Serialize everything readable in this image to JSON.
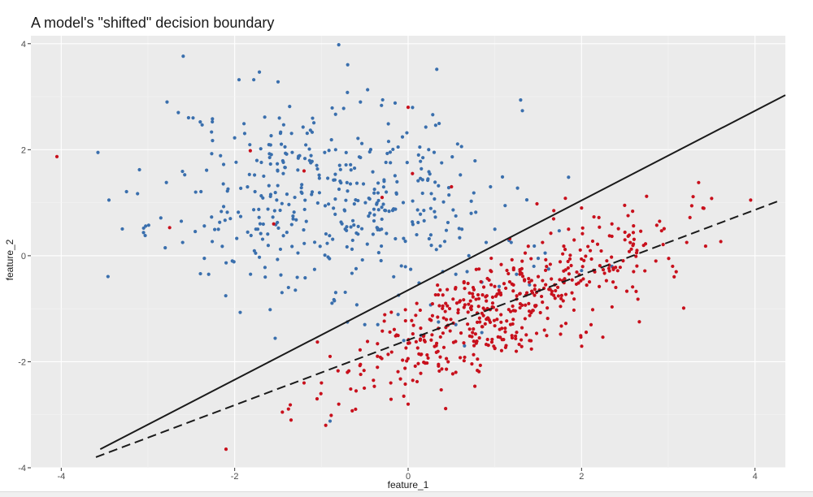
{
  "chart_data": {
    "type": "scatter",
    "title": "A model's \"shifted\" decision boundary",
    "xlabel": "feature_1",
    "ylabel": "feature_2",
    "xlim": [
      -4.35,
      4.35
    ],
    "ylim": [
      -4.0,
      4.15
    ],
    "x_ticks": [
      -4,
      -2,
      0,
      2,
      4
    ],
    "y_ticks": [
      -4,
      -2,
      0,
      2,
      4
    ],
    "grid": true,
    "legend": "none",
    "colors": {
      "panel": "#ebebeb",
      "grid_major": "#ffffff",
      "grid_minor": "#f4f4f4",
      "tick": "#333333",
      "blue_class": "#3a6fad",
      "red_class": "#c8101c",
      "boundary": "#1a1a1a"
    },
    "lines": [
      {
        "style": "solid",
        "x": [
          -3.55,
          4.35
        ],
        "y": [
          -3.65,
          3.03
        ]
      },
      {
        "style": "dashed",
        "x": [
          -3.6,
          4.3
        ],
        "y": [
          -3.8,
          1.05
        ]
      }
    ],
    "series": [
      {
        "color": "#3a6fad",
        "cluster": {
          "center": [
            -0.9,
            1.15
          ],
          "sd": [
            0.95,
            0.9
          ],
          "count": 400,
          "seed": 11
        },
        "points": [
          [
            -0.8,
            3.98
          ],
          [
            -1.95,
            3.32
          ],
          [
            -1.78,
            3.32
          ],
          [
            -1.5,
            3.28
          ],
          [
            -2.78,
            2.9
          ],
          [
            -2.65,
            2.7
          ],
          [
            -0.7,
            3.08
          ],
          [
            -0.15,
            2.88
          ],
          [
            -0.55,
            2.9
          ],
          [
            -3.45,
            1.05
          ],
          [
            -3.12,
            1.17
          ],
          [
            -3.05,
            0.52
          ],
          [
            -2.48,
            2.6
          ],
          [
            -0.85,
            -0.85
          ],
          [
            -1.38,
            -0.6
          ],
          [
            -1.3,
            -0.65
          ],
          [
            0.95,
            1.3
          ],
          [
            1.0,
            0.5
          ],
          [
            1.45,
            -0.2
          ],
          [
            1.58,
            0.05
          ],
          [
            1.85,
            1.48
          ],
          [
            0.62,
            0.5
          ],
          [
            0.55,
            0.75
          ],
          [
            0.35,
            1.32
          ],
          [
            0.78,
            0.82
          ],
          [
            0.9,
            0.25
          ],
          [
            0.7,
            0.0
          ],
          [
            0.3,
            1.95
          ],
          [
            0.12,
            1.9
          ],
          [
            0.4,
            -0.3
          ],
          [
            0.55,
            -0.35
          ],
          [
            0.68,
            -0.3
          ],
          [
            0.85,
            -0.5
          ],
          [
            1.05,
            -0.58
          ],
          [
            1.25,
            -0.35
          ],
          [
            1.4,
            -0.55
          ],
          [
            1.5,
            -0.05
          ],
          [
            1.62,
            -0.25
          ],
          [
            2.0,
            -0.28
          ],
          [
            2.35,
            -0.2
          ],
          [
            -0.35,
            -1.3
          ],
          [
            -0.5,
            -1.3
          ],
          [
            -0.7,
            -1.25
          ],
          [
            -0.05,
            -1.6
          ],
          [
            0.15,
            -1.5
          ],
          [
            0.35,
            -1.25
          ],
          [
            0.55,
            -1.3
          ],
          [
            0.65,
            -1.7
          ],
          [
            0.85,
            -1.45
          ],
          [
            -0.9,
            -3.12
          ],
          [
            -2.05,
            0.7
          ],
          [
            -2.3,
            -0.35
          ],
          [
            -2.45,
            1.2
          ],
          [
            -2.6,
            0.25
          ],
          [
            -2.35,
            -0.05
          ]
        ]
      },
      {
        "color": "#c8101c",
        "cluster": {
          "center": [
            1.05,
            -1.0
          ],
          "sd": [
            0.9,
            0.5
          ],
          "count": 470,
          "seed": 29,
          "slope": 0.62
        },
        "points": [
          [
            -4.05,
            1.87
          ],
          [
            0.0,
            2.8
          ],
          [
            -2.75,
            0.53
          ],
          [
            -1.82,
            1.98
          ],
          [
            -1.55,
            0.6
          ],
          [
            -1.2,
            1.6
          ],
          [
            -0.3,
            1.1
          ],
          [
            0.5,
            1.3
          ],
          [
            0.05,
            1.55
          ],
          [
            -2.1,
            -3.65
          ],
          [
            -1.35,
            -3.1
          ],
          [
            -1.45,
            -2.95
          ],
          [
            -0.95,
            -3.2
          ],
          [
            -1.05,
            -2.7
          ],
          [
            -1.2,
            -2.4
          ],
          [
            -0.8,
            -2.8
          ],
          [
            -0.6,
            -2.55
          ],
          [
            -0.4,
            -2.35
          ],
          [
            -0.2,
            -2.4
          ],
          [
            0.0,
            -2.8
          ],
          [
            -0.05,
            -2.65
          ],
          [
            -0.7,
            -2.2
          ],
          [
            -0.55,
            -2.05
          ],
          [
            -0.9,
            -1.9
          ],
          [
            3.05,
            -0.2
          ],
          [
            3.35,
            1.38
          ],
          [
            3.25,
            0.72
          ],
          [
            3.4,
            0.9
          ],
          [
            3.5,
            1.08
          ],
          [
            3.95,
            1.05
          ],
          [
            2.75,
            1.12
          ],
          [
            2.9,
            0.65
          ],
          [
            2.6,
            -0.3
          ],
          [
            2.65,
            -0.82
          ],
          [
            2.35,
            0.6
          ],
          [
            2.5,
            0.3
          ],
          [
            2.2,
            0.72
          ],
          [
            2.0,
            0.9
          ],
          [
            1.85,
            0.5
          ],
          [
            1.68,
            0.85
          ],
          [
            1.55,
            0.25
          ],
          [
            1.35,
            0.05
          ],
          [
            0.95,
            -0.28
          ],
          [
            0.75,
            -0.6
          ],
          [
            0.6,
            -0.85
          ],
          [
            0.4,
            -0.95
          ],
          [
            0.25,
            -1.2
          ],
          [
            0.1,
            -0.9
          ],
          [
            0.35,
            -2.05
          ],
          [
            0.55,
            -2.2
          ],
          [
            0.8,
            -1.95
          ],
          [
            1.0,
            -1.75
          ],
          [
            1.2,
            -1.55
          ],
          [
            1.4,
            -1.6
          ]
        ]
      }
    ]
  }
}
